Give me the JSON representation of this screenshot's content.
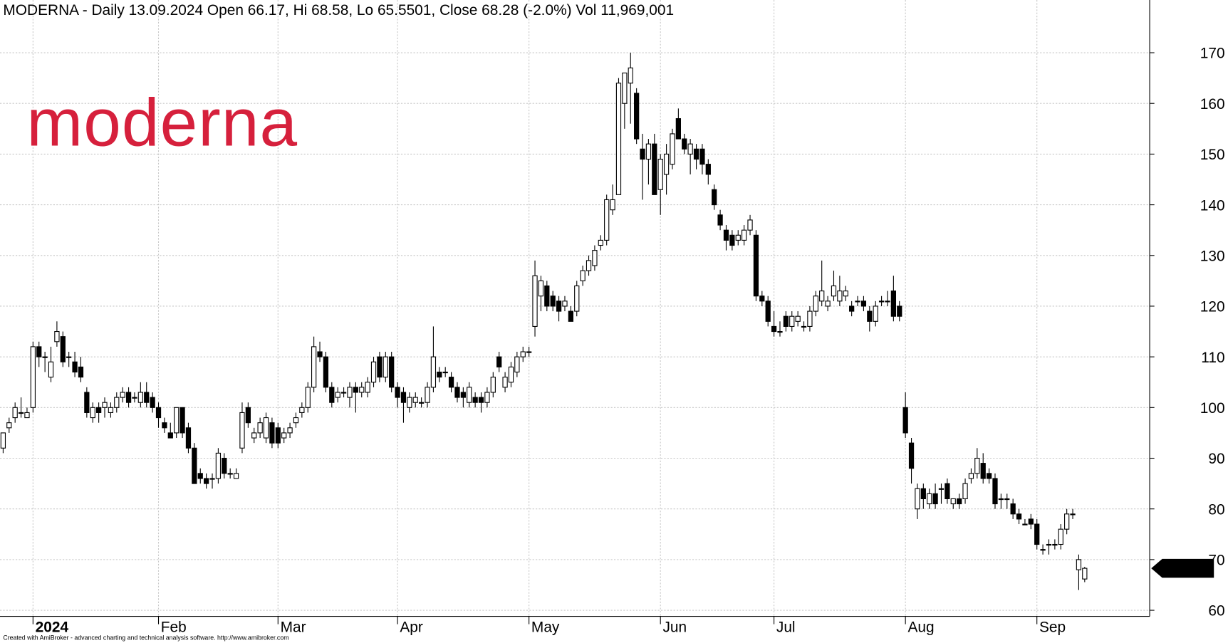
{
  "chart_data": {
    "type": "candlestick",
    "title": "MODERNA - Daily 13.09.2024 Open 66.17, Hi 68.58, Lo 65.5501, Close 68.28 (-2.0%) Vol 11,969,001",
    "logo": "moderna",
    "footer": "Created with AmiBroker - advanced charting and technical analysis software. http://www.amibroker.com",
    "up_color": "#ffffff",
    "down_color": "#000000",
    "ylim": [
      58.8,
      180.4
    ],
    "yticks": [
      60,
      70,
      80,
      90,
      100,
      110,
      120,
      130,
      140,
      150,
      160,
      170
    ],
    "xticks": [
      {
        "value": 5,
        "label": "2024"
      },
      {
        "value": 26,
        "label": "Feb"
      },
      {
        "value": 46,
        "label": "Mar"
      },
      {
        "value": 66,
        "label": "Apr"
      },
      {
        "value": 88,
        "label": "May"
      },
      {
        "value": 110,
        "label": "Jun"
      },
      {
        "value": 129,
        "label": "Jul"
      },
      {
        "value": 151,
        "label": "Aug"
      },
      {
        "value": 173,
        "label": "Sep"
      }
    ],
    "grid": true,
    "ohlc": [
      [
        92,
        95,
        91,
        95
      ],
      [
        96,
        98,
        95,
        97
      ],
      [
        98,
        101,
        97,
        100
      ],
      [
        99,
        102,
        98,
        99
      ],
      [
        98,
        100,
        98,
        99
      ],
      [
        100,
        113,
        99,
        112
      ],
      [
        112,
        113,
        108,
        110
      ],
      [
        110,
        111,
        107,
        110
      ],
      [
        106,
        112,
        105,
        109
      ],
      [
        113,
        117,
        112,
        115
      ],
      [
        114,
        115,
        108,
        109
      ],
      [
        110,
        111,
        108,
        110
      ],
      [
        109,
        111,
        106,
        107
      ],
      [
        108,
        110,
        105,
        106
      ],
      [
        103,
        104,
        98,
        99
      ],
      [
        98,
        101,
        97,
        100
      ],
      [
        100,
        101,
        97,
        99
      ],
      [
        100,
        102,
        98,
        101
      ],
      [
        99,
        101,
        98,
        100
      ],
      [
        100,
        103,
        99,
        102
      ],
      [
        102,
        104,
        101,
        103
      ],
      [
        103,
        104,
        100,
        101
      ],
      [
        102,
        103,
        101,
        102
      ],
      [
        101,
        105,
        100,
        103
      ],
      [
        103,
        105,
        100,
        101
      ],
      [
        102,
        103,
        99,
        100
      ],
      [
        100,
        101,
        96,
        98
      ],
      [
        97,
        98,
        95,
        96
      ],
      [
        95,
        97,
        94,
        94
      ],
      [
        95,
        100,
        94,
        100
      ],
      [
        100,
        100,
        94,
        95
      ],
      [
        96,
        97,
        91,
        92
      ],
      [
        92,
        93,
        85,
        85
      ],
      [
        87,
        88,
        85,
        86
      ],
      [
        86,
        87,
        84,
        85
      ],
      [
        86,
        87,
        84,
        86
      ],
      [
        86,
        92,
        85,
        91
      ],
      [
        90,
        91,
        86,
        87
      ],
      [
        87,
        88,
        86,
        87
      ],
      [
        86,
        88,
        86,
        87
      ],
      [
        92,
        101,
        91,
        99
      ],
      [
        100,
        101,
        96,
        97
      ],
      [
        94,
        96,
        93,
        95
      ],
      [
        95,
        98,
        94,
        97
      ],
      [
        94,
        99,
        93,
        98
      ],
      [
        97,
        98,
        92,
        93
      ],
      [
        96,
        97,
        92,
        93
      ],
      [
        94,
        96,
        93,
        95
      ],
      [
        95,
        97,
        94,
        96
      ],
      [
        97,
        99,
        96,
        98
      ],
      [
        99,
        101,
        98,
        100
      ],
      [
        100,
        105,
        99,
        104
      ],
      [
        104,
        114,
        103,
        112
      ],
      [
        111,
        113,
        109,
        110
      ],
      [
        110,
        111,
        103,
        104
      ],
      [
        104,
        105,
        100,
        101
      ],
      [
        102,
        104,
        101,
        103
      ],
      [
        103,
        104,
        102,
        103
      ],
      [
        102,
        105,
        100,
        104
      ],
      [
        104,
        105,
        99,
        103
      ],
      [
        103,
        105,
        102,
        104
      ],
      [
        103,
        106,
        102,
        105
      ],
      [
        105,
        110,
        104,
        109
      ],
      [
        110,
        111,
        105,
        106
      ],
      [
        106,
        111,
        105,
        110
      ],
      [
        110,
        111,
        103,
        104
      ],
      [
        104,
        105,
        100,
        102
      ],
      [
        103,
        104,
        97,
        101
      ],
      [
        100,
        103,
        99,
        102
      ],
      [
        101,
        103,
        100,
        102
      ],
      [
        101,
        102,
        100,
        101
      ],
      [
        101,
        105,
        100,
        104
      ],
      [
        104,
        116,
        103,
        110
      ],
      [
        107,
        108,
        105,
        106
      ],
      [
        107,
        108,
        106,
        107
      ],
      [
        106,
        107,
        103,
        104
      ],
      [
        104,
        105,
        101,
        102
      ],
      [
        103,
        104,
        100,
        102
      ],
      [
        101,
        105,
        100,
        104
      ],
      [
        102,
        103,
        100,
        101
      ],
      [
        102,
        103,
        99,
        101
      ],
      [
        101,
        104,
        100,
        103
      ],
      [
        103,
        107,
        102,
        106
      ],
      [
        110,
        111,
        107,
        108
      ],
      [
        104,
        107,
        103,
        106
      ],
      [
        105,
        109,
        104,
        108
      ],
      [
        107,
        111,
        106,
        110
      ],
      [
        110,
        112,
        109,
        111
      ],
      [
        111,
        112,
        110,
        111
      ],
      [
        116,
        129,
        114,
        126
      ],
      [
        122,
        126,
        119,
        125
      ],
      [
        124,
        125,
        119,
        120
      ],
      [
        122,
        123,
        119,
        120
      ],
      [
        121,
        122,
        117,
        119
      ],
      [
        120,
        122,
        119,
        121
      ],
      [
        119,
        120,
        117,
        117
      ],
      [
        119,
        125,
        118,
        124
      ],
      [
        125,
        128,
        124,
        127
      ],
      [
        127,
        130,
        126,
        129
      ],
      [
        128,
        132,
        127,
        131
      ],
      [
        132,
        134,
        131,
        133
      ],
      [
        133,
        142,
        132,
        141
      ],
      [
        139,
        144,
        138,
        141
      ],
      [
        142,
        165,
        142,
        164
      ],
      [
        160,
        166,
        155,
        166
      ],
      [
        164,
        170,
        156,
        167
      ],
      [
        162,
        163,
        152,
        153
      ],
      [
        151,
        154,
        141,
        149
      ],
      [
        149,
        153,
        144,
        152
      ],
      [
        152,
        154,
        142,
        142
      ],
      [
        143,
        150,
        138,
        149
      ],
      [
        146,
        152,
        142,
        150
      ],
      [
        148,
        155,
        147,
        154
      ],
      [
        157,
        159,
        153,
        153
      ],
      [
        153,
        154,
        150,
        151
      ],
      [
        150,
        153,
        146,
        152
      ],
      [
        151,
        152,
        147,
        149
      ],
      [
        151,
        152,
        146,
        148
      ],
      [
        148,
        149,
        144,
        146
      ],
      [
        143,
        144,
        139,
        140
      ],
      [
        138,
        139,
        135,
        136
      ],
      [
        135,
        136,
        131,
        133
      ],
      [
        134,
        135,
        131,
        132
      ],
      [
        133,
        135,
        132,
        134
      ],
      [
        133,
        136,
        132,
        135
      ],
      [
        135,
        138,
        134,
        137
      ],
      [
        134,
        135,
        121,
        122
      ],
      [
        122,
        123,
        120,
        121
      ],
      [
        121,
        122,
        116,
        117
      ],
      [
        116,
        119,
        114,
        115
      ],
      [
        115,
        117,
        114,
        115
      ],
      [
        118,
        119,
        115,
        116
      ],
      [
        116,
        119,
        115,
        118
      ],
      [
        117,
        119,
        116,
        118
      ],
      [
        116,
        117,
        115,
        116
      ],
      [
        116,
        120,
        115,
        119
      ],
      [
        119,
        123,
        118,
        122
      ],
      [
        121,
        129,
        120,
        123
      ],
      [
        120,
        122,
        119,
        121
      ],
      [
        122,
        127,
        121,
        124
      ],
      [
        121,
        126,
        120,
        123
      ],
      [
        122,
        124,
        121,
        123
      ],
      [
        120,
        121,
        118,
        119
      ],
      [
        121,
        122,
        120,
        121
      ],
      [
        121,
        122,
        119,
        120
      ],
      [
        119,
        120,
        115,
        117
      ],
      [
        117,
        121,
        116,
        120
      ],
      [
        121,
        122,
        120,
        121
      ],
      [
        121,
        123,
        120,
        121
      ],
      [
        123,
        126,
        117,
        118
      ],
      [
        120,
        121,
        117,
        118
      ],
      [
        100,
        103,
        94,
        95
      ],
      [
        93,
        94,
        85,
        88
      ],
      [
        80,
        85,
        78,
        84
      ],
      [
        84,
        85,
        80,
        82
      ],
      [
        81,
        84,
        80,
        83
      ],
      [
        83,
        85,
        80,
        81
      ],
      [
        84,
        85,
        81,
        84
      ],
      [
        85,
        86,
        81,
        82
      ],
      [
        81,
        82,
        80,
        82
      ],
      [
        82,
        83,
        80,
        81
      ],
      [
        82,
        86,
        81,
        85
      ],
      [
        86,
        88,
        85,
        87
      ],
      [
        87,
        92,
        86,
        90
      ],
      [
        89,
        91,
        85,
        86
      ],
      [
        87,
        88,
        85,
        86
      ],
      [
        86,
        87,
        80,
        81
      ],
      [
        82,
        83,
        80,
        82
      ],
      [
        82,
        83,
        80,
        82
      ],
      [
        81,
        82,
        78,
        79
      ],
      [
        79,
        80,
        77,
        78
      ],
      [
        77,
        78,
        77,
        77
      ],
      [
        78,
        79,
        76,
        77
      ],
      [
        77,
        78,
        72,
        73
      ],
      [
        72,
        73,
        71,
        72
      ],
      [
        73,
        74,
        71,
        73
      ],
      [
        73,
        74,
        72,
        73
      ],
      [
        73,
        77,
        72,
        76
      ],
      [
        76,
        80,
        75,
        79
      ],
      [
        79,
        80,
        78,
        79
      ],
      [
        68,
        71,
        64,
        70
      ],
      [
        66.17,
        68.58,
        65.55,
        68.28
      ]
    ]
  }
}
